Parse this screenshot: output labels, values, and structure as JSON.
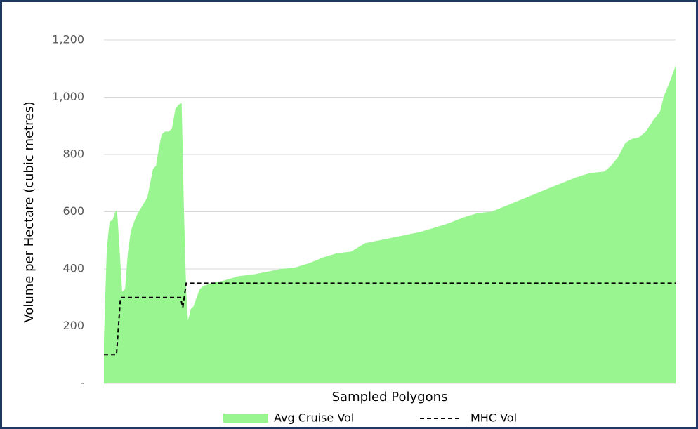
{
  "chart_data": {
    "type": "area",
    "x_label": "Sampled Polygons",
    "y_label": "Volume per Hectare (cubic metres)",
    "xlim": [
      0,
      100
    ],
    "ylim": [
      0,
      1200
    ],
    "yticks": [
      {
        "value": 0,
        "label": "-"
      },
      200,
      400,
      600,
      800,
      {
        "value": 1000,
        "label": "1,000"
      },
      {
        "value": 1200,
        "label": "1,200"
      }
    ],
    "grid": true,
    "legend": "bottom",
    "series": [
      {
        "name": "Avg Cruise Vol",
        "color": "#98f58f",
        "style": "area",
        "x": [
          0,
          0.5,
          1.0,
          1.5,
          2.0,
          2.3,
          2.7,
          3.2,
          3.7,
          4.2,
          4.7,
          5.2,
          5.8,
          6.4,
          7.0,
          7.6,
          8.1,
          8.6,
          9.1,
          9.6,
          10.1,
          10.7,
          11.3,
          11.9,
          12.5,
          13.1,
          13.6,
          14.0,
          14.4,
          14.7,
          15.2,
          15.7,
          16.2,
          16.8,
          17.4,
          18.7,
          21.1,
          23.6,
          26.0,
          28.5,
          31.0,
          33.4,
          35.9,
          38.3,
          40.8,
          43.2,
          45.7,
          48.2,
          50.6,
          53.1,
          55.5,
          58.0,
          60.4,
          62.9,
          65.4,
          67.8,
          70.3,
          72.7,
          75.2,
          77.6,
          80.1,
          82.6,
          85.0,
          87.5,
          88.7,
          89.9,
          91.2,
          92.4,
          93.6,
          94.8,
          96.1,
          97.3,
          97.9,
          98.5,
          99.1,
          100
        ],
        "values": [
          150,
          470,
          565,
          570,
          600,
          605,
          480,
          320,
          330,
          460,
          530,
          560,
          590,
          610,
          630,
          650,
          700,
          750,
          760,
          820,
          870,
          880,
          880,
          890,
          960,
          975,
          980,
          600,
          320,
          220,
          260,
          270,
          300,
          330,
          340,
          350,
          360,
          375,
          380,
          390,
          400,
          405,
          420,
          440,
          455,
          460,
          490,
          500,
          510,
          520,
          530,
          545,
          560,
          580,
          595,
          600,
          620,
          640,
          660,
          680,
          700,
          720,
          735,
          740,
          760,
          790,
          840,
          855,
          860,
          880,
          920,
          950,
          1000,
          1030,
          1060,
          1110
        ]
      },
      {
        "name": "MHC Vol",
        "color": "#000000",
        "style": "dashed",
        "x": [
          0,
          2.2,
          2.9,
          13.4,
          13.8,
          14.4,
          100
        ],
        "values": [
          100,
          100,
          300,
          300,
          265,
          350,
          350
        ]
      }
    ]
  }
}
